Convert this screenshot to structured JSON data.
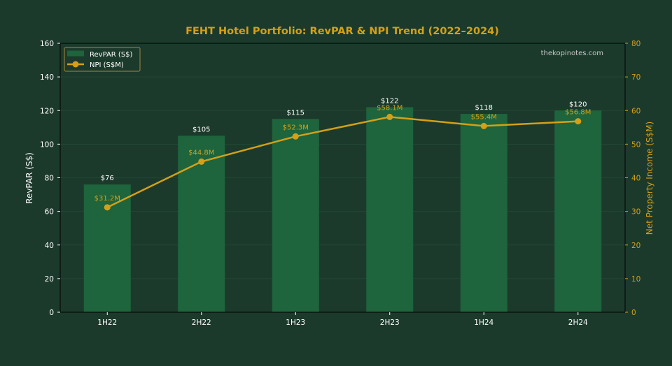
{
  "chart_data": {
    "type": "bar",
    "title": "FEHT Hotel Portfolio: RevPAR & NPI Trend (2022–2024)",
    "watermark": "thekopinotes.com",
    "categories": [
      "1H22",
      "2H22",
      "1H23",
      "2H23",
      "1H24",
      "2H24"
    ],
    "ylabel": "RevPAR (S$)",
    "y2label": "Net Property Income (S$M)",
    "ylim": [
      0,
      160
    ],
    "y2lim": [
      0,
      80
    ],
    "yticks": [
      0,
      20,
      40,
      60,
      80,
      100,
      120,
      140,
      160
    ],
    "y2ticks": [
      0,
      10,
      20,
      30,
      40,
      50,
      60,
      70,
      80
    ],
    "grid": true,
    "legend_position": "top-left",
    "series": [
      {
        "name": "RevPAR (S$)",
        "type": "bar",
        "axis": "left",
        "values": [
          76,
          105,
          115,
          122,
          118,
          120
        ],
        "labels": [
          "$76",
          "$105",
          "$115",
          "$122",
          "$118",
          "$120"
        ],
        "color": "#1e643c"
      },
      {
        "name": "NPI (S$M)",
        "type": "line",
        "axis": "right",
        "values": [
          31.2,
          44.8,
          52.3,
          58.1,
          55.4,
          56.8
        ],
        "labels": [
          "$31.2M",
          "$44.8M",
          "$52.3M",
          "$58.1M",
          "$55.4M",
          "$56.8M"
        ],
        "color": "#d4a017"
      }
    ],
    "colors": {
      "background": "#1c3a2c",
      "title": "#d4a017",
      "axis_left": "#ffffff",
      "axis_right": "#d4a017",
      "grid": "#244a36",
      "watermark": "#c8c8c8"
    }
  }
}
